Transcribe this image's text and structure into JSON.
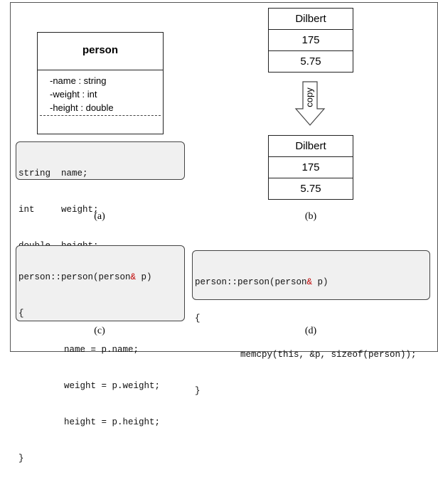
{
  "panel_a": {
    "class_name": "person",
    "attributes": [
      "-name : string",
      "-weight : int",
      "-height : double"
    ],
    "code": [
      "string  name;",
      "int     weight;",
      "double  height;"
    ],
    "caption": "(a)"
  },
  "panel_b": {
    "original": [
      "Dilbert",
      "175",
      "5.75"
    ],
    "arrow_label": "copy",
    "copy": [
      "Dilbert",
      "175",
      "5.75"
    ],
    "caption": "(b)"
  },
  "panel_c": {
    "signature": [
      "person::person(person",
      "&",
      " p)"
    ],
    "open": "{",
    "body": [
      "name = p.name;",
      "weight = p.weight;",
      "height = p.height;"
    ],
    "close": "}",
    "caption": "(c)"
  },
  "panel_d": {
    "signature": [
      "person::person(person",
      "&",
      " p)"
    ],
    "open": "{",
    "body": [
      "memcpy(this, &p, sizeof(person));"
    ],
    "close": "}",
    "caption": "(d)"
  }
}
